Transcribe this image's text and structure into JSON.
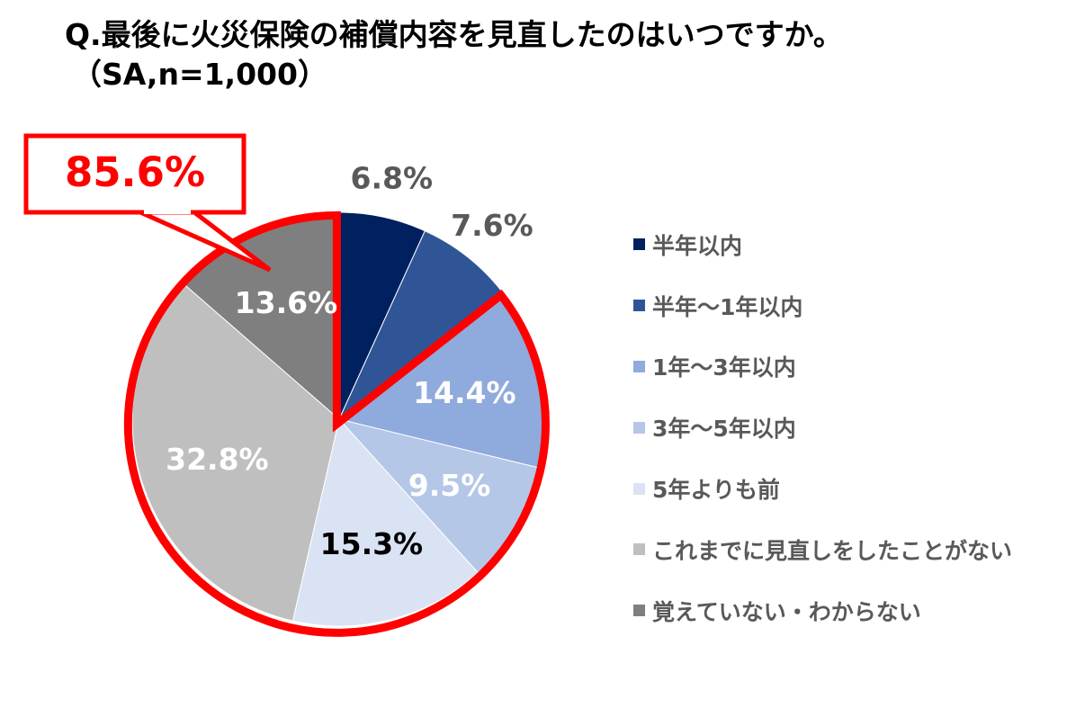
{
  "header": {
    "title": "Q.最後に火災保険の補償内容を見直したのはいつですか。",
    "subtitle": "（SA,n=1,000）"
  },
  "callout": {
    "text": "85.6%",
    "color": "#ff0000"
  },
  "chart_data": {
    "type": "pie",
    "title": "Q.最後に火災保険の補償内容を見直したのはいつですか。",
    "subtitle": "（SA,n=1,000）",
    "unit": "%",
    "direction": "clockwise",
    "start_angle": "12 o'clock",
    "legend_position": "right",
    "slices": [
      {
        "label": "半年以内",
        "value": 6.8,
        "display": "6.8%",
        "color": "#002060",
        "label_color": "#595959",
        "label_outside": true
      },
      {
        "label": "半年～1年以内",
        "value": 7.6,
        "display": "7.6%",
        "color": "#2f5597",
        "label_color": "#595959",
        "label_outside": true
      },
      {
        "label": "1年～3年以内",
        "value": 14.4,
        "display": "14.4%",
        "color": "#8faadc",
        "label_color": "#ffffff",
        "label_outside": false
      },
      {
        "label": "3年～5年以内",
        "value": 9.5,
        "display": "9.5%",
        "color": "#b4c7e7",
        "label_color": "#ffffff",
        "label_outside": false
      },
      {
        "label": "5年よりも前",
        "value": 15.3,
        "display": "15.3%",
        "color": "#dae3f3",
        "label_color": "#000000",
        "label_outside": false
      },
      {
        "label": "これまでに見直しをしたことがない",
        "value": 32.8,
        "display": "32.8%",
        "color": "#bfbfbf",
        "label_color": "#ffffff",
        "label_outside": false
      },
      {
        "label": "覚えていない・わからない",
        "value": 13.6,
        "display": "13.6%",
        "color": "#7f7f7f",
        "label_color": "#ffffff",
        "label_outside": false
      }
    ],
    "highlight": {
      "label": "85.6%",
      "slice_range": [
        "1年～3年以内",
        "覚えていない・わからない"
      ],
      "color": "#ff0000"
    }
  }
}
